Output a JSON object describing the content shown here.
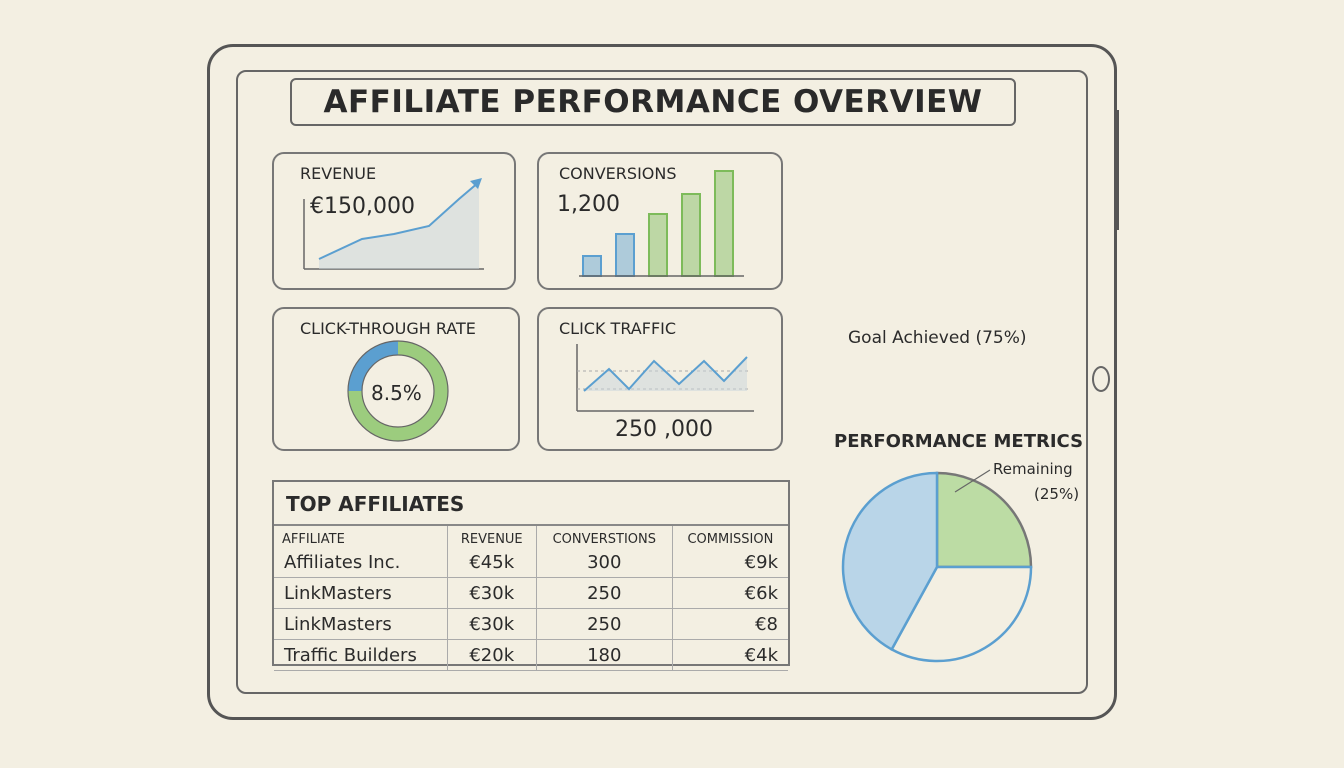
{
  "title": "AFFILIATE PERFORMANCE OVERVIEW",
  "cards": {
    "revenue": {
      "label": "REVENUE",
      "value": "€150,000"
    },
    "conversions": {
      "label": "CONVERSIONS",
      "value": "1,200"
    },
    "ctr": {
      "label": "CLICK-THROUGH RATE",
      "value": "8.5%",
      "fraction": 0.085
    },
    "traffic": {
      "label": "CLICK TRAFFIC",
      "value": "250 ,000"
    }
  },
  "table": {
    "title": "TOP AFFILIATES",
    "columns": [
      "AFFILIATE",
      "REVENUE",
      "CONVERSTIONS",
      "COMMISSION"
    ],
    "rows": [
      [
        "Affiliates Inc.",
        "€45k",
        "300",
        "€9k"
      ],
      [
        "LinkMasters",
        "€30k",
        "250",
        "€6k"
      ],
      [
        "LinkMasters",
        "€30k",
        "250",
        "€8"
      ],
      [
        "Traffic Builders",
        "€20k",
        "180",
        "€4k"
      ]
    ]
  },
  "goal": {
    "label": "Goal Achieved (75%)",
    "percent": 75
  },
  "performance": {
    "title": "PERFORMANCE METRICS",
    "remaining_label": "Remaining",
    "remaining_pct": "(25%)",
    "remaining_percent": 25
  },
  "colors": {
    "blue": "#5b9fd0",
    "green": "#7dbb5a",
    "ink": "#555555",
    "paper": "#f3efe2"
  }
}
